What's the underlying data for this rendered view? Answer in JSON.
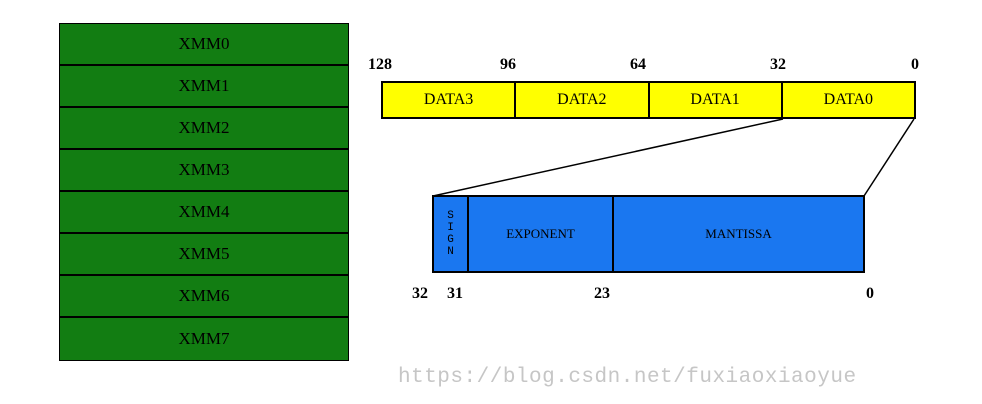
{
  "registers": [
    "XMM0",
    "XMM1",
    "XMM2",
    "XMM3",
    "XMM4",
    "XMM5",
    "XMM6",
    "XMM7"
  ],
  "data_row": {
    "bit_labels": [
      "128",
      "96",
      "64",
      "32",
      "0"
    ],
    "cells": [
      "DATA3",
      "DATA2",
      "DATA1",
      "DATA0"
    ]
  },
  "float_format": {
    "sign_letters": [
      "S",
      "I",
      "G",
      "N"
    ],
    "exponent_label": "EXPONENT",
    "mantissa_label": "MANTISSA",
    "bit_labels": [
      "32",
      "31",
      "23",
      "0"
    ]
  },
  "watermark": "https://blog.csdn.net/fuxiaoxiaoyue",
  "colors": {
    "register_fill": "#127d12",
    "data_fill": "#ffff00",
    "float_fill": "#1a77f0",
    "watermark": "#c6c6c6"
  }
}
